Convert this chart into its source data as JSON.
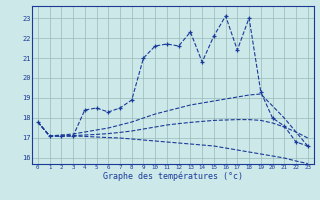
{
  "xlabel": "Graphe des températures (°c)",
  "bg_color": "#cce8e8",
  "line_color": "#1a3a9a",
  "grid_color": "#99bbbb",
  "ylim": [
    15.7,
    23.6
  ],
  "xlim": [
    -0.5,
    23.5
  ],
  "yticks": [
    16,
    17,
    18,
    19,
    20,
    21,
    22,
    23
  ],
  "xticks": [
    0,
    1,
    2,
    3,
    4,
    5,
    6,
    7,
    8,
    9,
    10,
    11,
    12,
    13,
    14,
    15,
    16,
    17,
    18,
    19,
    20,
    21,
    22,
    23
  ],
  "line1_x": [
    0,
    1,
    2,
    3,
    4,
    5,
    6,
    7,
    8,
    9,
    10,
    11,
    12,
    13,
    14,
    15,
    16,
    17,
    18,
    19,
    20,
    21,
    22,
    23
  ],
  "line1_y": [
    17.8,
    17.1,
    17.1,
    17.1,
    18.4,
    18.5,
    18.3,
    18.5,
    18.9,
    21.0,
    21.6,
    21.7,
    21.6,
    22.3,
    20.8,
    22.1,
    23.1,
    21.4,
    23.0,
    19.3,
    18.0,
    17.6,
    16.8,
    16.6
  ],
  "line2_x": [
    0,
    1,
    2,
    3,
    4,
    5,
    6,
    7,
    8,
    9,
    10,
    11,
    12,
    13,
    14,
    15,
    16,
    17,
    18,
    19,
    20,
    21,
    22,
    23
  ],
  "line2_y": [
    17.8,
    17.1,
    17.15,
    17.2,
    17.3,
    17.4,
    17.5,
    17.65,
    17.8,
    18.0,
    18.2,
    18.35,
    18.5,
    18.65,
    18.75,
    18.85,
    18.95,
    19.05,
    19.15,
    19.2,
    18.6,
    18.0,
    17.3,
    16.6
  ],
  "line3_x": [
    0,
    1,
    2,
    3,
    4,
    5,
    6,
    7,
    8,
    9,
    10,
    11,
    12,
    13,
    14,
    15,
    16,
    17,
    18,
    19,
    20,
    21,
    22,
    23
  ],
  "line3_y": [
    17.8,
    17.1,
    17.1,
    17.12,
    17.15,
    17.18,
    17.22,
    17.28,
    17.35,
    17.45,
    17.55,
    17.65,
    17.72,
    17.78,
    17.83,
    17.88,
    17.9,
    17.92,
    17.92,
    17.88,
    17.75,
    17.55,
    17.3,
    17.0
  ],
  "line4_x": [
    0,
    1,
    2,
    3,
    4,
    5,
    6,
    7,
    8,
    9,
    10,
    11,
    12,
    13,
    14,
    15,
    16,
    17,
    18,
    19,
    20,
    21,
    22,
    23
  ],
  "line4_y": [
    17.8,
    17.1,
    17.1,
    17.1,
    17.08,
    17.05,
    17.02,
    17.0,
    16.95,
    16.9,
    16.85,
    16.8,
    16.75,
    16.7,
    16.65,
    16.6,
    16.5,
    16.4,
    16.3,
    16.2,
    16.1,
    16.0,
    15.85,
    15.72
  ]
}
